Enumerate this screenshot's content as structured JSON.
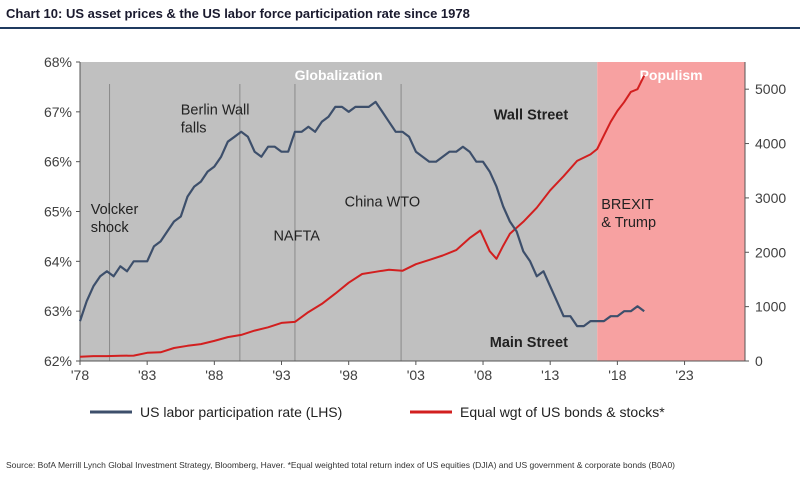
{
  "title": "Chart 10: US asset prices & the US labor force participation rate since 1978",
  "source": "Source: BofA Merrill Lynch Global Investment Strategy, Bloomberg, Haver. *Equal weighted total return index of US equities (DJIA) and US government & corporate bonds (B0A0)",
  "colors": {
    "globalization_bg": "#c0c0c0",
    "populism_bg": "#f7a1a1",
    "labor_line": "#3d4f6b",
    "asset_line": "#d21f1f",
    "asset_line_overlap": "#7a1a33",
    "axis_text": "#404040"
  },
  "chart_data": {
    "type": "line",
    "title": "Chart 10: US asset prices & the US labor force participation rate since 1978",
    "x_ticks": [
      "'78",
      "'83",
      "'88",
      "'93",
      "'98",
      "'03",
      "'08",
      "'13",
      "'18",
      "'23"
    ],
    "x_tick_years": [
      1978,
      1983,
      1988,
      1993,
      1998,
      2003,
      2008,
      2013,
      2018,
      2023
    ],
    "xlim": [
      1978,
      2027.5
    ],
    "left_axis": {
      "ticks": [
        "62%",
        "63%",
        "64%",
        "65%",
        "66%",
        "67%",
        "68%"
      ],
      "tick_values": [
        62,
        63,
        64,
        65,
        66,
        67,
        68
      ],
      "ylim": [
        62,
        68
      ]
    },
    "right_axis": {
      "ticks": [
        "0",
        "1000",
        "2000",
        "3000",
        "4000",
        "5000"
      ],
      "tick_values": [
        0,
        1000,
        2000,
        3000,
        4000,
        5000
      ],
      "ylim": [
        0,
        5500
      ]
    },
    "regions": [
      {
        "label": "Globalization",
        "from": 1978,
        "to": 2016.5
      },
      {
        "label": "Populism",
        "from": 2016.5,
        "to": 2027.5
      }
    ],
    "event_lines": [
      1980.2,
      1989.9,
      1994.0,
      2001.9
    ],
    "annotations": [
      {
        "lines": [
          "Volcker",
          "shock"
        ],
        "year": 1978.8,
        "value": 64.95
      },
      {
        "lines": [
          "Berlin Wall",
          "falls"
        ],
        "year": 1985.5,
        "value": 66.95
      },
      {
        "lines": [
          "NAFTA"
        ],
        "year": 1992.4,
        "value": 64.42
      },
      {
        "lines": [
          "China WTO"
        ],
        "year": 1997.7,
        "value": 65.1
      },
      {
        "lines": [
          "Wall Street"
        ],
        "year": 2008.8,
        "value": 66.85
      },
      {
        "lines": [
          "BREXIT",
          "& Trump"
        ],
        "year": 2016.8,
        "value": 65.05
      },
      {
        "lines": [
          "Main Street"
        ],
        "year": 2008.5,
        "value": 62.28
      }
    ],
    "series": [
      {
        "name": "US labor participation rate (LHS)",
        "axis": "left",
        "x": [
          1978.0,
          1978.5,
          1979.0,
          1979.5,
          1980.0,
          1980.5,
          1981.0,
          1981.5,
          1982.0,
          1982.5,
          1983.0,
          1983.5,
          1984.0,
          1984.5,
          1985.0,
          1985.5,
          1986.0,
          1986.5,
          1987.0,
          1987.5,
          1988.0,
          1988.5,
          1989.0,
          1989.5,
          1990.0,
          1990.5,
          1991.0,
          1991.5,
          1992.0,
          1992.5,
          1993.0,
          1993.5,
          1994.0,
          1994.5,
          1995.0,
          1995.5,
          1996.0,
          1996.5,
          1997.0,
          1997.5,
          1998.0,
          1998.5,
          1999.0,
          1999.5,
          2000.0,
          2000.5,
          2001.0,
          2001.5,
          2002.0,
          2002.5,
          2003.0,
          2003.5,
          2004.0,
          2004.5,
          2005.0,
          2005.5,
          2006.0,
          2006.5,
          2007.0,
          2007.5,
          2008.0,
          2008.5,
          2009.0,
          2009.5,
          2010.0,
          2010.5,
          2011.0,
          2011.5,
          2012.0,
          2012.5,
          2013.0,
          2013.5,
          2014.0,
          2014.5,
          2015.0,
          2015.5,
          2016.0,
          2016.5,
          2017.0,
          2017.5,
          2018.0,
          2018.5,
          2019.0,
          2019.5,
          2020.0
        ],
        "values": [
          62.8,
          63.2,
          63.5,
          63.7,
          63.8,
          63.7,
          63.9,
          63.8,
          64.0,
          64.0,
          64.0,
          64.3,
          64.4,
          64.6,
          64.8,
          64.9,
          65.3,
          65.5,
          65.6,
          65.8,
          65.9,
          66.1,
          66.4,
          66.5,
          66.6,
          66.5,
          66.2,
          66.1,
          66.3,
          66.3,
          66.2,
          66.2,
          66.6,
          66.6,
          66.7,
          66.6,
          66.8,
          66.9,
          67.1,
          67.1,
          67.0,
          67.1,
          67.1,
          67.1,
          67.2,
          67.0,
          66.8,
          66.6,
          66.6,
          66.5,
          66.2,
          66.1,
          66.0,
          66.0,
          66.1,
          66.2,
          66.2,
          66.3,
          66.2,
          66.0,
          66.0,
          65.8,
          65.5,
          65.1,
          64.8,
          64.6,
          64.2,
          64.0,
          63.7,
          63.8,
          63.5,
          63.2,
          62.9,
          62.9,
          62.7,
          62.7,
          62.8,
          62.8,
          62.8,
          62.9,
          62.9,
          63.0,
          63.0,
          63.1,
          63.0
        ]
      },
      {
        "name": "Equal wgt of US bonds & stocks*",
        "axis": "right",
        "x": [
          1978.0,
          1979.0,
          1980.0,
          1981.0,
          1982.0,
          1983.0,
          1984.0,
          1985.0,
          1986.0,
          1987.0,
          1988.0,
          1989.0,
          1990.0,
          1991.0,
          1992.0,
          1993.0,
          1994.0,
          1995.0,
          1996.0,
          1997.0,
          1998.0,
          1999.0,
          2000.0,
          2001.0,
          2002.0,
          2003.0,
          2004.0,
          2005.0,
          2006.0,
          2007.0,
          2007.8,
          2008.5,
          2009.0,
          2009.5,
          2010.0,
          2011.0,
          2012.0,
          2013.0,
          2014.0,
          2015.0,
          2016.0,
          2016.5,
          2017.0,
          2017.5,
          2018.0,
          2018.5,
          2019.0,
          2019.5,
          2020.0
        ],
        "values": [
          80,
          90,
          90,
          95,
          100,
          150,
          160,
          240,
          280,
          310,
          370,
          440,
          480,
          560,
          620,
          700,
          720,
          900,
          1050,
          1240,
          1440,
          1600,
          1640,
          1680,
          1660,
          1780,
          1860,
          1940,
          2040,
          2260,
          2400,
          2020,
          1880,
          2120,
          2340,
          2560,
          2820,
          3140,
          3400,
          3680,
          3800,
          3900,
          4150,
          4400,
          4600,
          4760,
          4950,
          5000,
          5250
        ]
      }
    ]
  },
  "legend": {
    "labor_label": "US labor participation rate (LHS)",
    "asset_label": "Equal wgt of US bonds & stocks*"
  }
}
